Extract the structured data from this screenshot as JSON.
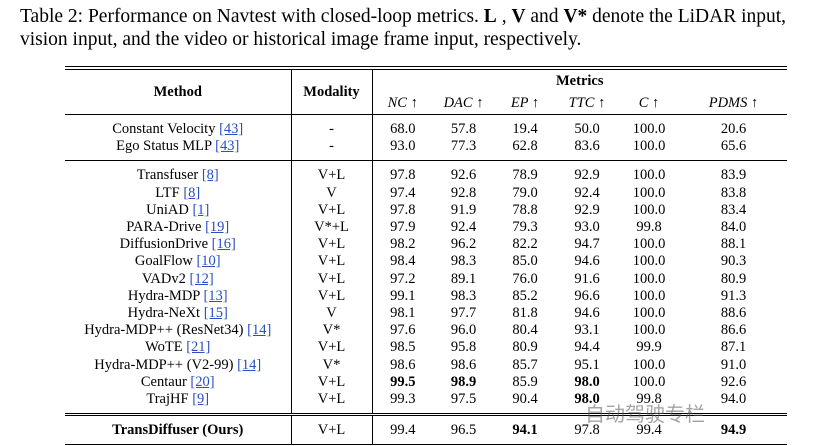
{
  "caption": [
    "Table 2: Performance on Navtest with closed-loop metrics. ",
    "L",
    " , ",
    "V",
    " and ",
    "V*",
    " denote the LiDAR input, vision input, and the video or historical image frame input, respectively."
  ],
  "table": {
    "headers": {
      "method": "Method",
      "modality": "Modality",
      "metrics": "Metrics",
      "metric_names": [
        "NC ↑",
        "DAC ↑",
        "EP ↑",
        "TTC ↑",
        "C ↑",
        "PDMS ↑"
      ]
    },
    "groups": [
      [
        {
          "method": "Constant Velocity",
          "ref": "[43]",
          "modality": "-",
          "values": [
            "68.0",
            "57.8",
            "19.4",
            "50.0",
            "100.0",
            "20.6"
          ],
          "bold": []
        },
        {
          "method": "Ego Status MLP",
          "ref": "[43]",
          "modality": "-",
          "values": [
            "93.0",
            "77.3",
            "62.8",
            "83.6",
            "100.0",
            "65.6"
          ],
          "bold": []
        }
      ],
      [
        {
          "method": "Transfuser",
          "ref": "[8]",
          "modality": "V+L",
          "values": [
            "97.8",
            "92.6",
            "78.9",
            "92.9",
            "100.0",
            "83.9"
          ],
          "bold": []
        },
        {
          "method": "LTF",
          "ref": "[8]",
          "modality": "V",
          "values": [
            "97.4",
            "92.8",
            "79.0",
            "92.4",
            "100.0",
            "83.8"
          ],
          "bold": []
        },
        {
          "method": "UniAD",
          "ref": "[1]",
          "modality": "V+L",
          "values": [
            "97.8",
            "91.9",
            "78.8",
            "92.9",
            "100.0",
            "83.4"
          ],
          "bold": []
        },
        {
          "method": "PARA-Drive",
          "ref": "[19]",
          "modality": "V*+L",
          "values": [
            "97.9",
            "92.4",
            "79.3",
            "93.0",
            "99.8",
            "84.0"
          ],
          "bold": []
        },
        {
          "method": "DiffusionDrive",
          "ref": "[16]",
          "modality": "V+L",
          "values": [
            "98.2",
            "96.2",
            "82.2",
            "94.7",
            "100.0",
            "88.1"
          ],
          "bold": []
        },
        {
          "method": "GoalFlow",
          "ref": "[10]",
          "modality": "V+L",
          "values": [
            "98.4",
            "98.3",
            "85.0",
            "94.6",
            "100.0",
            "90.3"
          ],
          "bold": []
        },
        {
          "method": "VADv2",
          "ref": "[12]",
          "modality": "V+L",
          "values": [
            "97.2",
            "89.1",
            "76.0",
            "91.6",
            "100.0",
            "80.9"
          ],
          "bold": []
        },
        {
          "method": "Hydra-MDP",
          "ref": "[13]",
          "modality": "V+L",
          "values": [
            "99.1",
            "98.3",
            "85.2",
            "96.6",
            "100.0",
            "91.3"
          ],
          "bold": []
        },
        {
          "method": "Hydra-NeXt",
          "ref": "[15]",
          "modality": "V",
          "values": [
            "98.1",
            "97.7",
            "81.8",
            "94.6",
            "100.0",
            "88.6"
          ],
          "bold": []
        },
        {
          "method": "Hydra-MDP++ (ResNet34)",
          "ref": "[14]",
          "modality": "V*",
          "values": [
            "97.6",
            "96.0",
            "80.4",
            "93.1",
            "100.0",
            "86.6"
          ],
          "bold": []
        },
        {
          "method": "WoTE",
          "ref": "[21]",
          "modality": "V+L",
          "values": [
            "98.5",
            "95.8",
            "80.9",
            "94.4",
            "99.9",
            "87.1"
          ],
          "bold": []
        },
        {
          "method": "Hydra-MDP++ (V2-99)",
          "ref": "[14]",
          "modality": "V*",
          "values": [
            "98.6",
            "98.6",
            "85.7",
            "95.1",
            "100.0",
            "91.0"
          ],
          "bold": []
        },
        {
          "method": "Centaur",
          "ref": "[20]",
          "modality": "V+L",
          "values": [
            "99.5",
            "98.9",
            "85.9",
            "98.0",
            "100.0",
            "92.6"
          ],
          "bold": [
            0,
            1,
            3
          ]
        },
        {
          "method": "TrajHF",
          "ref": "[9]",
          "modality": "V+L",
          "values": [
            "99.3",
            "97.5",
            "90.4",
            "98.0",
            "99.8",
            "94.0"
          ],
          "bold": [
            3
          ]
        }
      ],
      [
        {
          "method": "TransDiffuser (Ours)",
          "modality": "V+L",
          "values": [
            "99.4",
            "96.5",
            "94.1",
            "97.8",
            "99.4",
            "94.9"
          ],
          "bold": [
            2,
            5
          ]
        }
      ]
    ]
  },
  "watermark": "自动驾驶专栏"
}
